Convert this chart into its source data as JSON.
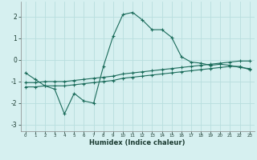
{
  "xlabel": "Humidex (Indice chaleur)",
  "background_color": "#d6f0f0",
  "grid_color": "#b8dede",
  "line_color": "#1a6b5a",
  "x_data": [
    0,
    1,
    2,
    3,
    4,
    5,
    6,
    7,
    8,
    9,
    10,
    11,
    12,
    13,
    14,
    15,
    16,
    17,
    18,
    19,
    20,
    21,
    22,
    23
  ],
  "line1_y": [
    -0.6,
    -0.9,
    -1.2,
    -1.35,
    -2.5,
    -1.55,
    -1.9,
    -2.0,
    -0.3,
    1.1,
    2.1,
    2.2,
    1.85,
    1.4,
    1.4,
    1.05,
    0.15,
    -0.1,
    -0.15,
    -0.25,
    -0.2,
    -0.25,
    -0.35,
    -0.4
  ],
  "line2_y": [
    -1.05,
    -1.05,
    -1.0,
    -1.0,
    -1.0,
    -0.95,
    -0.9,
    -0.85,
    -0.8,
    -0.75,
    -0.65,
    -0.6,
    -0.55,
    -0.5,
    -0.45,
    -0.4,
    -0.35,
    -0.3,
    -0.25,
    -0.2,
    -0.15,
    -0.1,
    -0.05,
    -0.05
  ],
  "line3_y": [
    -1.25,
    -1.25,
    -1.2,
    -1.2,
    -1.2,
    -1.15,
    -1.1,
    -1.05,
    -1.0,
    -0.95,
    -0.85,
    -0.8,
    -0.75,
    -0.7,
    -0.65,
    -0.6,
    -0.55,
    -0.5,
    -0.45,
    -0.4,
    -0.35,
    -0.3,
    -0.3,
    -0.45
  ],
  "ylim": [
    -3.3,
    2.7
  ],
  "xlim": [
    -0.5,
    23.5
  ],
  "yticks": [
    -3,
    -2,
    -1,
    0,
    1,
    2
  ],
  "xticks": [
    0,
    1,
    2,
    3,
    4,
    5,
    6,
    7,
    8,
    9,
    10,
    11,
    12,
    13,
    14,
    15,
    16,
    17,
    18,
    19,
    20,
    21,
    22,
    23
  ]
}
